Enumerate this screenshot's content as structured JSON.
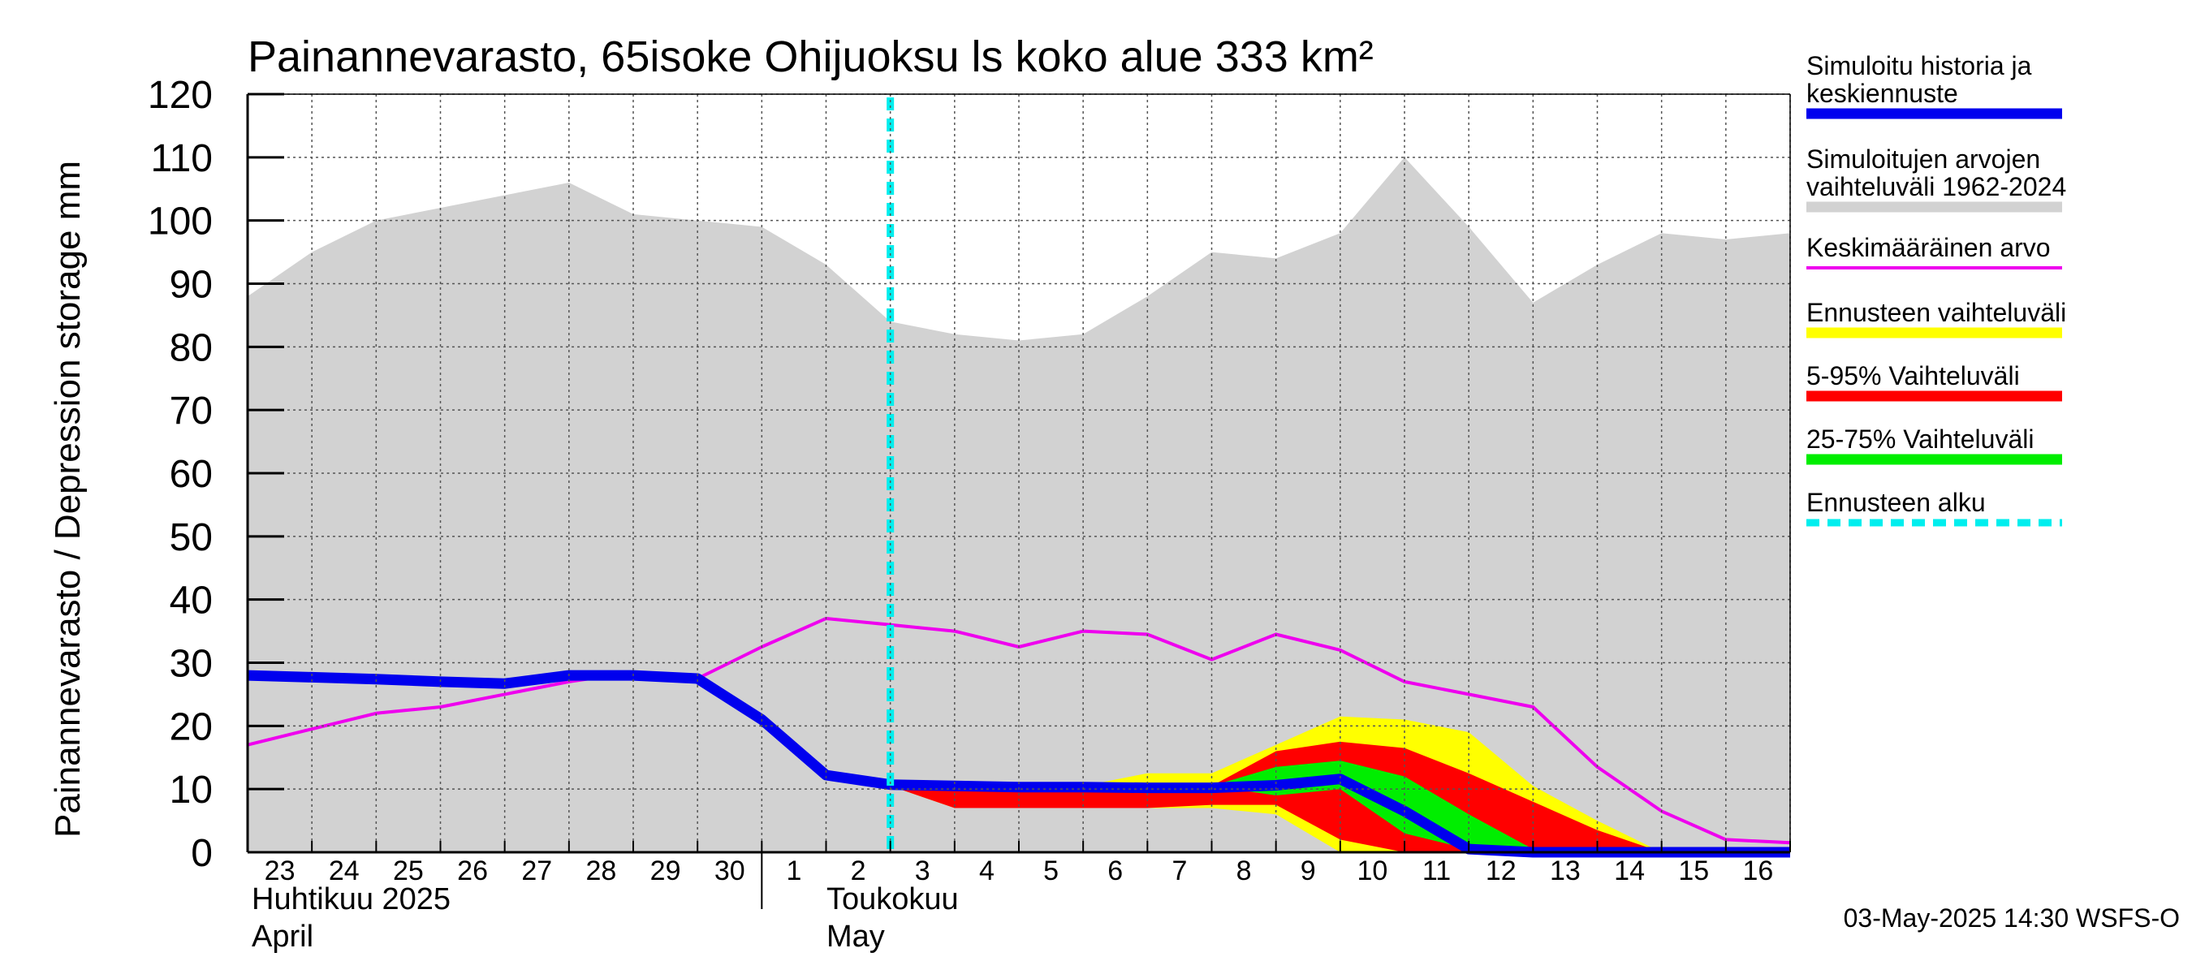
{
  "chart_data": {
    "type": "area",
    "title": "Painannevarasto, 65isoke Ohijuoksu ls koko alue 333 km²",
    "ylabel": "Painannevarasto / Depression storage    mm",
    "ylim": [
      0,
      120
    ],
    "yticks": [
      0,
      10,
      20,
      30,
      40,
      50,
      60,
      70,
      80,
      90,
      100,
      110,
      120
    ],
    "xlim": [
      0,
      24
    ],
    "grid": true,
    "legend_position": "right",
    "x_ticks": [
      {
        "x": 0,
        "label": "23"
      },
      {
        "x": 1,
        "label": "24"
      },
      {
        "x": 2,
        "label": "25"
      },
      {
        "x": 3,
        "label": "26"
      },
      {
        "x": 4,
        "label": "27"
      },
      {
        "x": 5,
        "label": "28"
      },
      {
        "x": 6,
        "label": "29"
      },
      {
        "x": 7,
        "label": "30"
      },
      {
        "x": 8,
        "label": "1"
      },
      {
        "x": 9,
        "label": "2"
      },
      {
        "x": 10,
        "label": "3"
      },
      {
        "x": 11,
        "label": "4"
      },
      {
        "x": 12,
        "label": "5"
      },
      {
        "x": 13,
        "label": "6"
      },
      {
        "x": 14,
        "label": "7"
      },
      {
        "x": 15,
        "label": "8"
      },
      {
        "x": 16,
        "label": "9"
      },
      {
        "x": 17,
        "label": "10"
      },
      {
        "x": 18,
        "label": "11"
      },
      {
        "x": 19,
        "label": "12"
      },
      {
        "x": 20,
        "label": "13"
      },
      {
        "x": 21,
        "label": "14"
      },
      {
        "x": 22,
        "label": "15"
      },
      {
        "x": 23,
        "label": "16"
      }
    ],
    "month_labels": {
      "april_fi": "Huhtikuu  2025",
      "april_en": "April",
      "may_fi": "Toukokuu",
      "may_en": "May"
    },
    "forecast_start_x": 10,
    "historical_range": {
      "x": [
        0,
        1,
        2,
        3,
        4,
        5,
        6,
        7,
        8,
        9,
        10,
        11,
        12,
        13,
        14,
        15,
        16,
        17,
        18,
        19,
        20,
        21,
        22,
        23,
        24
      ],
      "upper": [
        88,
        95,
        100,
        102,
        104,
        106,
        101,
        100,
        99,
        93,
        84,
        82,
        81,
        82,
        88,
        95,
        94,
        98,
        110,
        99,
        87,
        93,
        98,
        97,
        98
      ],
      "lower": [
        0,
        0,
        0,
        0,
        0,
        0,
        0,
        0,
        0,
        0,
        0,
        0,
        0,
        0,
        0,
        0,
        0,
        0,
        0,
        0,
        0,
        0,
        0,
        0,
        0
      ]
    },
    "forecast_range": {
      "x": [
        10,
        11,
        12,
        13,
        14,
        15,
        16,
        17,
        18,
        19,
        20,
        21,
        22
      ],
      "upper": [
        10.5,
        10,
        10,
        10.5,
        12.5,
        12.5,
        17,
        21.5,
        21,
        19,
        10.5,
        5,
        0
      ],
      "lower": [
        10.5,
        7,
        7,
        7,
        7,
        7,
        6,
        0,
        0,
        0,
        0,
        0,
        0
      ]
    },
    "p5_95": {
      "x": [
        10,
        11,
        12,
        13,
        14,
        15,
        16,
        17,
        18,
        19,
        20,
        21,
        22
      ],
      "upper": [
        10.5,
        10,
        10,
        10,
        10,
        10.5,
        16,
        17.5,
        16.5,
        12.5,
        8,
        3.5,
        0
      ],
      "lower": [
        10.5,
        7,
        7,
        7,
        7,
        7.5,
        7.5,
        2,
        0,
        0,
        0,
        0,
        0
      ]
    },
    "p25_75": {
      "x": [
        15,
        16,
        17,
        18,
        19,
        20
      ],
      "upper": [
        10.5,
        13.5,
        14.5,
        12,
        6,
        0.5
      ],
      "lower": [
        10.5,
        9,
        10,
        3,
        0.5,
        0
      ]
    },
    "series": [
      {
        "name": "Keskimääräinen arvo",
        "color": "#ee00ee",
        "x": [
          0,
          1,
          2,
          3,
          4,
          5,
          6,
          7,
          8,
          9,
          10,
          11,
          12,
          13,
          14,
          15,
          16,
          17,
          18,
          19,
          20,
          21,
          22,
          23,
          24
        ],
        "values": [
          17,
          19.5,
          22,
          23,
          25,
          27,
          28.5,
          27.5,
          32.5,
          37,
          36,
          35,
          32.5,
          35,
          34.5,
          30.5,
          34.5,
          32,
          27,
          25,
          23,
          13.5,
          6.5,
          2,
          1.5
        ]
      },
      {
        "name": "Simuloitu historia ja keskiennuste",
        "color": "#0000ee",
        "x": [
          0,
          1,
          2,
          3,
          4,
          5,
          6,
          7,
          8,
          9,
          10,
          11,
          12,
          13,
          14,
          15,
          16,
          17,
          18,
          19,
          20,
          21,
          22,
          23,
          24
        ],
        "values": [
          28,
          27.7,
          27.4,
          27,
          26.7,
          28,
          28,
          27.5,
          21,
          12.2,
          10.7,
          10.5,
          10.3,
          10.3,
          10.2,
          10.2,
          10.6,
          11.6,
          6.5,
          0.5,
          0,
          0,
          0,
          0,
          0
        ]
      }
    ],
    "legend": [
      {
        "label": "Simuloitu historia ja keskiennuste",
        "color": "#0000ee",
        "style": "thick"
      },
      {
        "label": "Simuloitujen arvojen vaihteluväli 1962-2024",
        "color": "#d2d2d2",
        "style": "thick"
      },
      {
        "label": "Keskimääräinen arvo",
        "color": "#ee00ee",
        "style": "thin"
      },
      {
        "label": "Ennusteen vaihteluväli",
        "color": "#ffff00",
        "style": "thick"
      },
      {
        "label": "5-95% Vaihteluväli",
        "color": "#ff0000",
        "style": "thick"
      },
      {
        "label": "25-75% Vaihteluväli",
        "color": "#00ee00",
        "style": "thick"
      },
      {
        "label": "Ennusteen alku",
        "color": "#00eeee",
        "style": "dashed"
      }
    ],
    "colors": {
      "historical": "#d2d2d2",
      "forecast_range": "#ffff00",
      "p5_95": "#ff0000",
      "p25_75": "#00ee00",
      "mean": "#ee00ee",
      "main": "#0000ee",
      "forecast_start": "#00eeee"
    }
  },
  "footer": "03-May-2025 14:30 WSFS-O"
}
